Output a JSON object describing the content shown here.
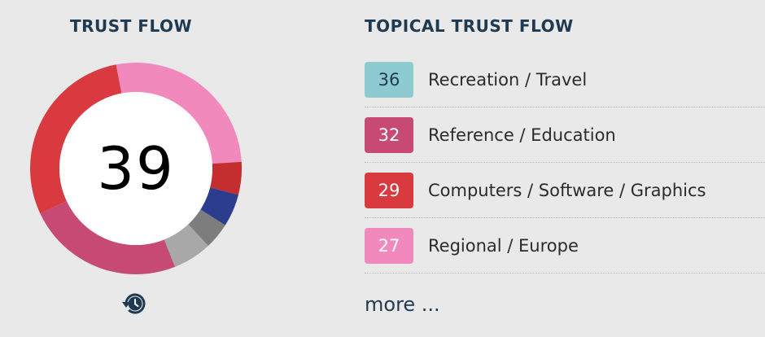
{
  "trust_flow": {
    "title": "TRUST FLOW",
    "score": "39",
    "ring_segments": [
      {
        "value": 36,
        "color": "#8ecbd0"
      },
      {
        "value": 32,
        "color": "#c74a74"
      },
      {
        "value": 29,
        "color": "#d93a3f"
      },
      {
        "value": 27,
        "color": "#f189bc"
      },
      {
        "value": 5,
        "color": "#c52e2e"
      },
      {
        "value": 5,
        "color": "#2b3d8c"
      },
      {
        "value": 4,
        "color": "#7d7d7d"
      },
      {
        "value": 6,
        "color": "#a8a8a8"
      }
    ],
    "ring_track_color": "#ececec",
    "history_icon": "history-clock-icon"
  },
  "topical": {
    "title": "TOPICAL TRUST FLOW",
    "items": [
      {
        "value": "36",
        "label": "Recreation / Travel",
        "color": "#8ecbd0",
        "text_color": "#1e3a52"
      },
      {
        "value": "32",
        "label": "Reference / Education",
        "color": "#c74a74",
        "text_color": "#ffffff"
      },
      {
        "value": "29",
        "label": "Computers / Software / Graphics",
        "color": "#d93a3f",
        "text_color": "#ffffff"
      },
      {
        "value": "27",
        "label": "Regional / Europe",
        "color": "#f189bc",
        "text_color": "#ffffff"
      }
    ],
    "more_label": "more ..."
  }
}
